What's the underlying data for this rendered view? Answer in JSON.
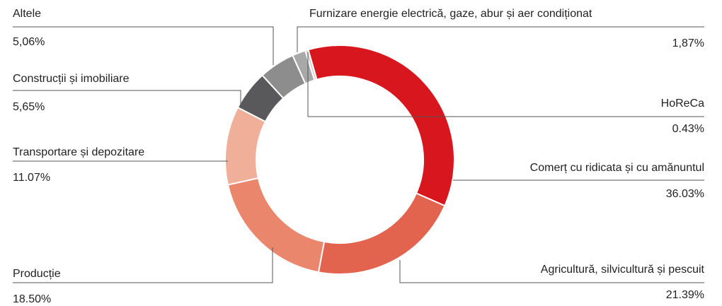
{
  "chart_data": {
    "type": "donut",
    "categories": [
      "Comerț cu ridicata și cu amănuntul",
      "Agricultură, silvicultură și pescuit",
      "Producție",
      "Transportare și depozitare",
      "Construcții și imobiliare",
      "Altele",
      "Furnizare energie electrică, gaze, abur și aer condiționat",
      "HoReCa"
    ],
    "values": [
      36.03,
      21.39,
      18.5,
      11.07,
      5.65,
      5.06,
      1.87,
      0.43
    ],
    "value_labels": [
      "36.03%",
      "21.39%",
      "18.50%",
      "11.07%",
      "5,65%",
      "5,06%",
      "1,87%",
      "0.43%"
    ],
    "colors": [
      "#d7161e",
      "#e2644e",
      "#e9866c",
      "#f0af99",
      "#59595b",
      "#8d8d8d",
      "#a8a8a8",
      "#cfcfcf"
    ]
  }
}
